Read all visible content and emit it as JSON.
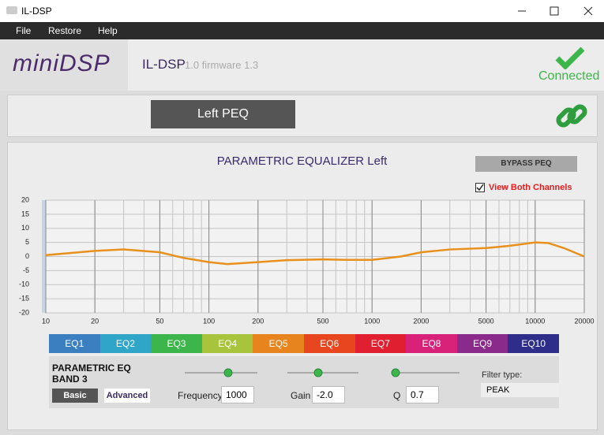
{
  "window": {
    "title": "IL-DSP"
  },
  "menu": [
    "File",
    "Restore",
    "Help"
  ],
  "header": {
    "logo": "miniDSP",
    "product": "IL-DSP",
    "version": "1.0 firmware 1.3",
    "status": "Connected"
  },
  "channel_button": "Left PEQ",
  "controls": {
    "bypass": "BYPASS PEQ",
    "view_both": "View Both Channels"
  },
  "chart_data": {
    "type": "line",
    "title": "PARAMETRIC EQUALIZER Left",
    "x": [
      10,
      20,
      30,
      50,
      70,
      100,
      130,
      200,
      300,
      500,
      700,
      1000,
      1500,
      2000,
      3000,
      5000,
      7000,
      10000,
      12000,
      15000,
      20000
    ],
    "series": [
      {
        "color": "#e8901c",
        "values": [
          0.5,
          2,
          2.5,
          1.5,
          -0.5,
          -2,
          -2.7,
          -2,
          -1.3,
          -1,
          -1.2,
          -1.2,
          0,
          1.5,
          2.5,
          3,
          3.8,
          5,
          4.8,
          3,
          0
        ]
      }
    ],
    "xlim": [
      10,
      20000
    ],
    "ylim": [
      -20,
      20
    ],
    "log_x": true,
    "grid": true,
    "xticks": [
      10,
      20,
      50,
      100,
      200,
      500,
      1000,
      2000,
      5000,
      10000,
      20000
    ],
    "yticks": [
      -20,
      -15,
      -10,
      -5,
      0,
      5,
      10,
      15,
      20
    ]
  },
  "tabs": [
    {
      "label": "EQ1",
      "color": "#3b7fc0"
    },
    {
      "label": "EQ2",
      "color": "#2fa5c8"
    },
    {
      "label": "EQ3",
      "color": "#3cb54a"
    },
    {
      "label": "EQ4",
      "color": "#a8c43c"
    },
    {
      "label": "EQ5",
      "color": "#e8841e"
    },
    {
      "label": "EQ6",
      "color": "#e8461e"
    },
    {
      "label": "EQ7",
      "color": "#e02030"
    },
    {
      "label": "EQ8",
      "color": "#d8227a"
    },
    {
      "label": "EQ9",
      "color": "#8a2a8a"
    },
    {
      "label": "EQ10",
      "color": "#2e2e8a"
    }
  ],
  "band": {
    "title": "PARAMETRIC EQ BAND 3",
    "basic": "Basic",
    "advanced": "Advanced",
    "frequency_label": "Frequency",
    "frequency": "1000",
    "gain_label": "Gain",
    "gain": "-2.0",
    "q_label": "Q",
    "q": "0.7",
    "filter_type_label": "Filter type:",
    "filter_type": "PEAK"
  }
}
